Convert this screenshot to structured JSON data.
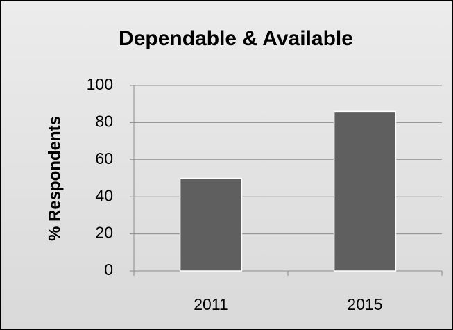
{
  "chart_data": {
    "type": "bar",
    "title": "Dependable & Available",
    "y_label": "% Respondents",
    "categories": [
      "2011",
      "2015"
    ],
    "values": [
      50,
      86
    ],
    "color": "#5f5f5f",
    "ylim": [
      0,
      100
    ],
    "yticks": [
      0,
      20,
      40,
      60,
      80,
      100
    ],
    "grid": true
  }
}
